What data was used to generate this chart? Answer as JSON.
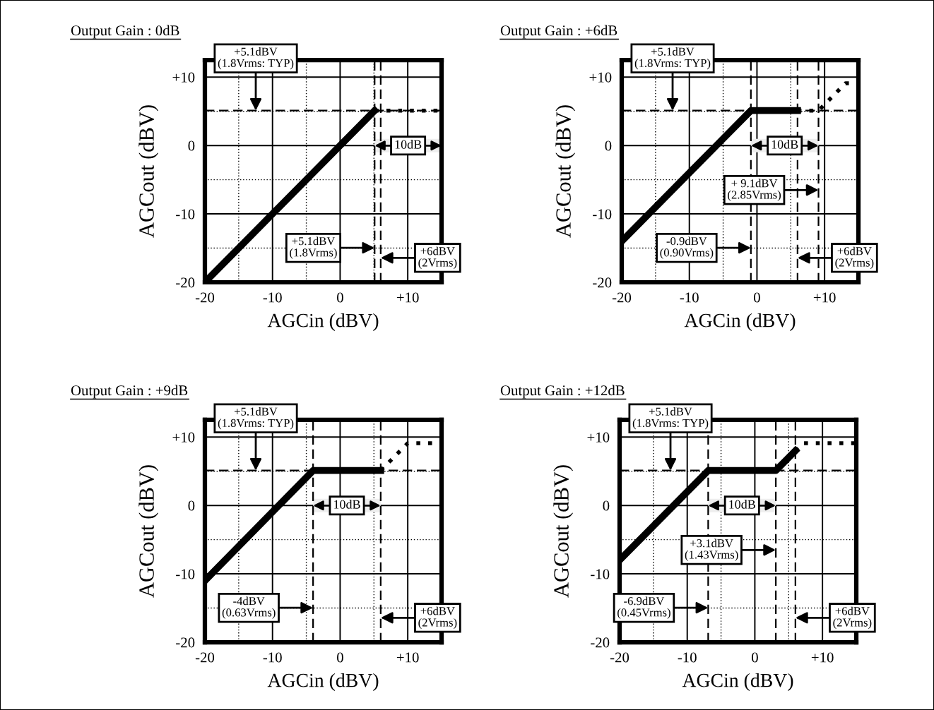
{
  "chart_data": [
    {
      "type": "line",
      "title": "Output Gain : 0dB",
      "xlabel": "AGCin (dBV)",
      "ylabel": "AGCout (dBV)",
      "xlim": [
        -20,
        15
      ],
      "ylim": [
        -20,
        12.5
      ],
      "xticks": [
        -20,
        {
          "value": -15,
          "label": null
        },
        -10,
        {
          "value": -5,
          "label": null
        },
        0,
        {
          "value": 5,
          "label": null
        },
        {
          "value": 10,
          "label": "+10"
        }
      ],
      "yticks": [
        -20,
        {
          "value": -15,
          "label": null
        },
        -10,
        {
          "value": -5,
          "label": null
        },
        0,
        {
          "value": 5,
          "label": null
        },
        {
          "value": 10,
          "label": "+10"
        }
      ],
      "grid": true,
      "series": [
        {
          "color": "#000000",
          "line_style": "solid",
          "x": [
            -20,
            5.1
          ],
          "values": [
            -20,
            5.1
          ]
        },
        {
          "color": "#000000",
          "line_style": "dotted",
          "x": [
            5.1,
            15
          ],
          "values": [
            5.1,
            5.1
          ]
        }
      ],
      "ref_lines": [
        {
          "axis": "y",
          "value": 5.1,
          "color": "#000000",
          "line_style": "dashed",
          "label": "+5.1dBV\n(1.8Vrms: TYP)"
        },
        {
          "axis": "x",
          "value": 5.1,
          "color": "#000000",
          "line_style": "dashed",
          "label": "+5.1dBV\n(1.8Vrms)"
        },
        {
          "axis": "x",
          "value": 6,
          "color": "#000000",
          "line_style": "dashed",
          "label": "+6dBV\n(2Vrms)"
        }
      ],
      "bands": [
        {
          "axis": "x",
          "from": 5.1,
          "to": 15,
          "label": "10dB"
        }
      ]
    },
    {
      "type": "line",
      "title": "Output Gain : +6dB",
      "xlabel": "AGCin (dBV)",
      "ylabel": "AGCout (dBV)",
      "xlim": [
        -20,
        15
      ],
      "ylim": [
        -20,
        12.5
      ],
      "xticks": [
        -20,
        {
          "value": -15,
          "label": null
        },
        -10,
        {
          "value": -5,
          "label": null
        },
        0,
        {
          "value": 5,
          "label": null
        },
        {
          "value": 10,
          "label": "+10"
        }
      ],
      "yticks": [
        -20,
        {
          "value": -15,
          "label": null
        },
        -10,
        {
          "value": -5,
          "label": null
        },
        0,
        {
          "value": 5,
          "label": null
        },
        {
          "value": 10,
          "label": "+10"
        }
      ],
      "grid": true,
      "series": [
        {
          "color": "#000000",
          "line_style": "solid",
          "x": [
            -20,
            -0.9,
            6
          ],
          "values": [
            -14,
            5.1,
            5.1
          ]
        },
        {
          "color": "#000000",
          "line_style": "dotted",
          "x": [
            6,
            9.1,
            13.1,
            15
          ],
          "values": [
            5.1,
            5.1,
            9.1,
            9.1
          ]
        }
      ],
      "ref_lines": [
        {
          "axis": "y",
          "value": 5.1,
          "color": "#000000",
          "line_style": "dashed",
          "label": "+5.1dBV\n(1.8Vrms: TYP)"
        },
        {
          "axis": "x",
          "value": -0.9,
          "color": "#000000",
          "line_style": "dashed",
          "label": "-0.9dBV\n(0.90Vrms)"
        },
        {
          "axis": "x",
          "value": 9.1,
          "color": "#000000",
          "line_style": "dashed",
          "label": "+ 9.1dBV\n(2.85Vrms)"
        },
        {
          "axis": "x",
          "value": 6,
          "color": "#000000",
          "line_style": "dashed",
          "label": "+6dBV\n(2Vrms)"
        }
      ],
      "bands": [
        {
          "axis": "x",
          "from": -0.9,
          "to": 9.1,
          "label": "10dB"
        }
      ]
    },
    {
      "type": "line",
      "title": "Output Gain : +9dB",
      "xlabel": "AGCin (dBV)",
      "ylabel": "AGCout (dBV)",
      "xlim": [
        -20,
        15
      ],
      "ylim": [
        -20,
        12.5
      ],
      "xticks": [
        -20,
        {
          "value": -15,
          "label": null
        },
        -10,
        {
          "value": -5,
          "label": null
        },
        0,
        {
          "value": 5,
          "label": null
        },
        {
          "value": 10,
          "label": "+10"
        }
      ],
      "yticks": [
        -20,
        {
          "value": -15,
          "label": null
        },
        -10,
        {
          "value": -5,
          "label": null
        },
        0,
        {
          "value": 5,
          "label": null
        },
        {
          "value": 10,
          "label": "+10"
        }
      ],
      "grid": true,
      "series": [
        {
          "color": "#000000",
          "line_style": "solid",
          "x": [
            -20,
            -4,
            6
          ],
          "values": [
            -11,
            5.1,
            5.1
          ]
        },
        {
          "color": "#000000",
          "line_style": "dotted",
          "x": [
            6,
            10,
            15
          ],
          "values": [
            5.1,
            9.1,
            9.1
          ]
        }
      ],
      "ref_lines": [
        {
          "axis": "y",
          "value": 5.1,
          "color": "#000000",
          "line_style": "dashed",
          "label": "+5.1dBV\n(1.8Vrms: TYP)"
        },
        {
          "axis": "x",
          "value": -4,
          "color": "#000000",
          "line_style": "dashed",
          "label": "-4dBV\n(0.63Vrms)"
        },
        {
          "axis": "x",
          "value": 6,
          "color": "#000000",
          "line_style": "dashed",
          "label": "+6dBV\n(2Vrms)"
        }
      ],
      "bands": [
        {
          "axis": "x",
          "from": -4,
          "to": 6,
          "label": "10dB"
        }
      ]
    },
    {
      "type": "line",
      "title": "Output Gain : +12dB",
      "xlabel": "AGCin (dBV)",
      "ylabel": "AGCout (dBV)",
      "xlim": [
        -20,
        15
      ],
      "ylim": [
        -20,
        12.5
      ],
      "xticks": [
        -20,
        {
          "value": -15,
          "label": null
        },
        -10,
        {
          "value": -5,
          "label": null
        },
        0,
        {
          "value": 5,
          "label": null
        },
        {
          "value": 10,
          "label": "+10"
        }
      ],
      "yticks": [
        -20,
        {
          "value": -15,
          "label": null
        },
        -10,
        {
          "value": -5,
          "label": null
        },
        0,
        {
          "value": 5,
          "label": null
        },
        {
          "value": 10,
          "label": "+10"
        }
      ],
      "grid": true,
      "series": [
        {
          "color": "#000000",
          "line_style": "solid",
          "x": [
            -20,
            -6.9,
            3.1,
            6
          ],
          "values": [
            -8,
            5.1,
            5.1,
            8
          ]
        },
        {
          "color": "#000000",
          "line_style": "dotted",
          "x": [
            6,
            7.1,
            15
          ],
          "values": [
            8,
            9.1,
            9.1
          ]
        }
      ],
      "ref_lines": [
        {
          "axis": "y",
          "value": 5.1,
          "color": "#000000",
          "line_style": "dashed",
          "label": "+5.1dBV\n(1.8Vrms: TYP)"
        },
        {
          "axis": "x",
          "value": -6.9,
          "color": "#000000",
          "line_style": "dashed",
          "label": "-6.9dBV\n(0.45Vrms)"
        },
        {
          "axis": "x",
          "value": 3.1,
          "color": "#000000",
          "line_style": "dashed",
          "label": "+3.1dBV\n(1.43Vrms)"
        },
        {
          "axis": "x",
          "value": 6,
          "color": "#000000",
          "line_style": "dashed",
          "label": "+6dBV\n(2Vrms)"
        }
      ],
      "bands": [
        {
          "axis": "x",
          "from": -6.9,
          "to": 3.1,
          "label": "10dB"
        }
      ]
    }
  ]
}
